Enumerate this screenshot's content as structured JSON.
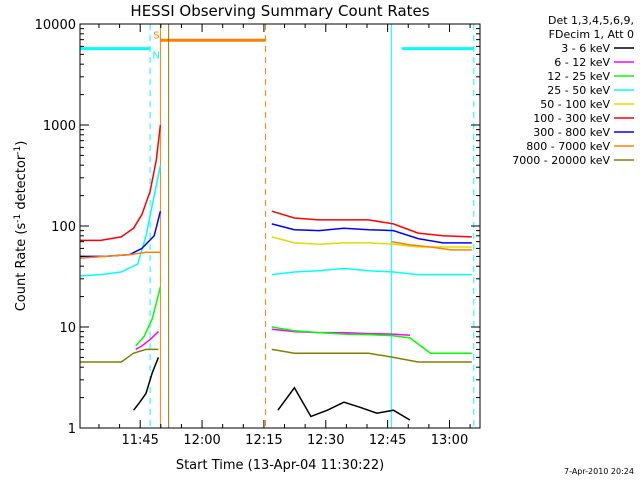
{
  "chart_data": {
    "type": "line",
    "title": "HESSI Observing Summary Count Rates",
    "xlabel": "Start Time (13-Apr-04 11:30:22)",
    "ylabel": "Count Rate (s^-1 detector^-1)",
    "ylabel_base": "Count Rate (s",
    "ylabel_sup1": "-1",
    "ylabel_mid": " detector",
    "ylabel_sup2": "-1",
    "ylabel_end": ")",
    "yscale": "log",
    "ylim": [
      1,
      10000
    ],
    "xlim_minutes": [
      0,
      97
    ],
    "x_ticks": [
      {
        "label": "11:45",
        "minutes": 14.6
      },
      {
        "label": "12:00",
        "minutes": 29.6
      },
      {
        "label": "12:15",
        "minutes": 44.6
      },
      {
        "label": "12:30",
        "minutes": 59.6
      },
      {
        "label": "12:45",
        "minutes": 74.6
      },
      {
        "label": "13:00",
        "minutes": 89.6
      }
    ],
    "y_ticks": [
      {
        "label": "1",
        "value": 1
      },
      {
        "label": "10",
        "value": 10
      },
      {
        "label": "100",
        "value": 100
      },
      {
        "label": "1000",
        "value": 1000
      },
      {
        "label": "10000",
        "value": 10000
      }
    ],
    "legend": {
      "header": [
        "Det 1,3,4,5,6,9,",
        "FDecim 1, Att 0"
      ],
      "placement": "right"
    },
    "series": [
      {
        "name": "3 - 6 keV",
        "color": "#000000",
        "segments": [
          {
            "x": [
              13.0,
              14.5,
              16.0,
              17.5,
              19.0
            ],
            "y": [
              1.5,
              1.8,
              2.2,
              3.5,
              5.0
            ]
          },
          {
            "x": [
              48.0,
              52.0,
              56.0,
              60.0,
              64.0,
              68.0,
              72.0,
              76.0,
              80.0
            ],
            "y": [
              1.5,
              2.5,
              1.3,
              1.5,
              1.8,
              1.6,
              1.4,
              1.5,
              1.2
            ]
          }
        ]
      },
      {
        "name": "6 - 12 keV",
        "color": "#ff00ff",
        "segments": [
          {
            "x": [
              13.5,
              15.0,
              17.0,
              19.0
            ],
            "y": [
              6.0,
              6.5,
              7.5,
              9.0
            ]
          },
          {
            "x": [
              46.5,
              52.0,
              58.0,
              64.0,
              70.0,
              76.0,
              80.0
            ],
            "y": [
              9.5,
              9.0,
              8.8,
              8.8,
              8.6,
              8.5,
              8.3
            ]
          }
        ]
      },
      {
        "name": "12 - 25 keV",
        "color": "#00ff00",
        "segments": [
          {
            "x": [
              13.5,
              15.5,
              17.5,
              19.5
            ],
            "y": [
              6.5,
              8.0,
              12.0,
              25.0
            ]
          },
          {
            "x": [
              46.5,
              52.0,
              58.0,
              64.0,
              70.0,
              76.0,
              80.0,
              85.0,
              90.0,
              95.0
            ],
            "y": [
              10.0,
              9.2,
              8.8,
              8.5,
              8.4,
              8.2,
              7.8,
              5.5,
              5.5,
              5.5
            ]
          }
        ]
      },
      {
        "name": "25 - 50 keV",
        "color": "#00ffff",
        "segments": [
          {
            "x": [
              0.0,
              5.0,
              10.0,
              14.0,
              16.0,
              18.0,
              19.5
            ],
            "y": [
              32,
              33,
              35,
              42,
              80,
              200,
              400
            ]
          },
          {
            "x": [
              46.5,
              52.0,
              58.0,
              64.0,
              70.0,
              76.0,
              82.0,
              88.0,
              95.0
            ],
            "y": [
              33,
              35,
              36,
              38,
              36,
              35,
              33,
              33,
              33
            ]
          }
        ]
      },
      {
        "name": "50 - 100 keV",
        "color": "#dddd00",
        "segments": [
          {
            "x": [
              46.5,
              52.0,
              58.0,
              64.0,
              70.0,
              76.0,
              82.0,
              88.0,
              95.0
            ],
            "y": [
              78,
              68,
              66,
              68,
              68,
              66,
              62,
              62,
              62
            ]
          }
        ]
      },
      {
        "name": "100 - 300 keV",
        "color": "#ff0000",
        "segments": [
          {
            "x": [
              0.0,
              5.0,
              10.0,
              13.0,
              15.0,
              17.0,
              18.5,
              19.5
            ],
            "y": [
              72,
              72,
              78,
              95,
              130,
              220,
              450,
              1000
            ]
          },
          {
            "x": [
              46.5,
              52.0,
              58.0,
              64.0,
              70.0,
              76.0,
              82.0,
              88.0,
              95.0
            ],
            "y": [
              140,
              120,
              115,
              115,
              115,
              105,
              85,
              80,
              78
            ]
          }
        ]
      },
      {
        "name": "300 - 800 keV",
        "color": "#0000ff",
        "segments": [
          {
            "x": [
              0.0,
              6.0,
              12.0,
              15.0,
              18.0,
              19.5
            ],
            "y": [
              50,
              50,
              52,
              60,
              80,
              140
            ]
          },
          {
            "x": [
              46.5,
              52.0,
              58.0,
              64.0,
              70.0,
              76.0,
              82.0,
              88.0,
              95.0
            ],
            "y": [
              105,
              92,
              90,
              95,
              92,
              90,
              75,
              68,
              68
            ]
          }
        ]
      },
      {
        "name": "800 - 7000 keV",
        "color": "#ff8000",
        "segments": [
          {
            "x": [
              0.0,
              6.0,
              12.0,
              16.0,
              19.5
            ],
            "y": [
              48,
              50,
              52,
              55,
              55
            ]
          },
          {
            "x": [
              75.5,
              80.0,
              85.0,
              90.0,
              95.0
            ],
            "y": [
              70,
              65,
              62,
              58,
              58
            ]
          }
        ]
      },
      {
        "name": "7000 - 20000 keV",
        "color": "#808000",
        "segments": [
          {
            "x": [
              0.0,
              5.0,
              10.0,
              13.0,
              16.0,
              19.0
            ],
            "y": [
              4.5,
              4.5,
              4.5,
              5.5,
              6.0,
              6.0
            ]
          },
          {
            "x": [
              46.5,
              52.0,
              58.0,
              64.0,
              70.0,
              76.0,
              82.0,
              88.0,
              95.0
            ],
            "y": [
              6.0,
              5.5,
              5.5,
              5.5,
              5.5,
              5.0,
              4.5,
              4.5,
              4.5
            ]
          }
        ]
      }
    ],
    "status_bars": [
      {
        "label": "N",
        "color": "#00ffff",
        "y": 5700,
        "ranges": [
          [
            0.0,
            17.0
          ],
          [
            78.0,
            95.5
          ]
        ]
      },
      {
        "label": "S",
        "color": "#ff8000",
        "y": 6900,
        "ranges": [
          [
            19.5,
            45.0
          ]
        ]
      }
    ],
    "vlines": [
      {
        "color": "#00ffff",
        "dashed": false,
        "x": 0.0
      },
      {
        "color": "#00ffff",
        "dashed": true,
        "x": 17.0
      },
      {
        "color": "#ff8000",
        "dashed": false,
        "x": 19.5
      },
      {
        "color": "#808000",
        "dashed": false,
        "x": 21.5
      },
      {
        "color": "#ff8000",
        "dashed": true,
        "x": 45.0
      },
      {
        "color": "#00ffff",
        "dashed": false,
        "x": 75.5
      },
      {
        "color": "#00ffff",
        "dashed": true,
        "x": 95.5
      }
    ]
  },
  "footer": {
    "timestamp": "7-Apr-2010 20:24"
  }
}
